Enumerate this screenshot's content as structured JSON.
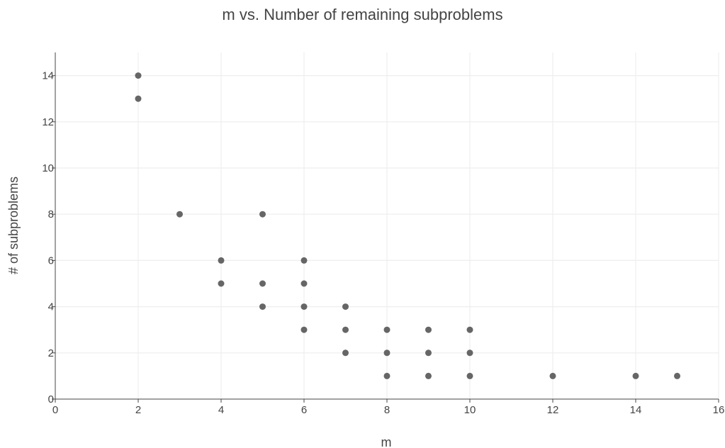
{
  "chart_data": {
    "type": "scatter",
    "title": "m vs. Number of remaining subproblems",
    "xlabel": "m",
    "ylabel": "# of subproblems",
    "xlim": [
      0,
      16
    ],
    "ylim": [
      0,
      15
    ],
    "x_ticks": [
      0,
      2,
      4,
      6,
      8,
      10,
      12,
      14,
      16
    ],
    "y_ticks": [
      0,
      2,
      4,
      6,
      8,
      10,
      12,
      14
    ],
    "grid": true,
    "marker_color": "#666666",
    "points": [
      {
        "x": 2,
        "y": 14
      },
      {
        "x": 2,
        "y": 13
      },
      {
        "x": 3,
        "y": 8
      },
      {
        "x": 4,
        "y": 6
      },
      {
        "x": 4,
        "y": 5
      },
      {
        "x": 5,
        "y": 8
      },
      {
        "x": 5,
        "y": 5
      },
      {
        "x": 5,
        "y": 4
      },
      {
        "x": 6,
        "y": 6
      },
      {
        "x": 6,
        "y": 5
      },
      {
        "x": 6,
        "y": 4
      },
      {
        "x": 6,
        "y": 3
      },
      {
        "x": 7,
        "y": 4
      },
      {
        "x": 7,
        "y": 3
      },
      {
        "x": 7,
        "y": 2
      },
      {
        "x": 8,
        "y": 3
      },
      {
        "x": 8,
        "y": 2
      },
      {
        "x": 8,
        "y": 1
      },
      {
        "x": 9,
        "y": 3
      },
      {
        "x": 9,
        "y": 2
      },
      {
        "x": 9,
        "y": 1
      },
      {
        "x": 10,
        "y": 3
      },
      {
        "x": 10,
        "y": 2
      },
      {
        "x": 10,
        "y": 1
      },
      {
        "x": 12,
        "y": 1
      },
      {
        "x": 14,
        "y": 1
      },
      {
        "x": 15,
        "y": 1
      }
    ]
  }
}
